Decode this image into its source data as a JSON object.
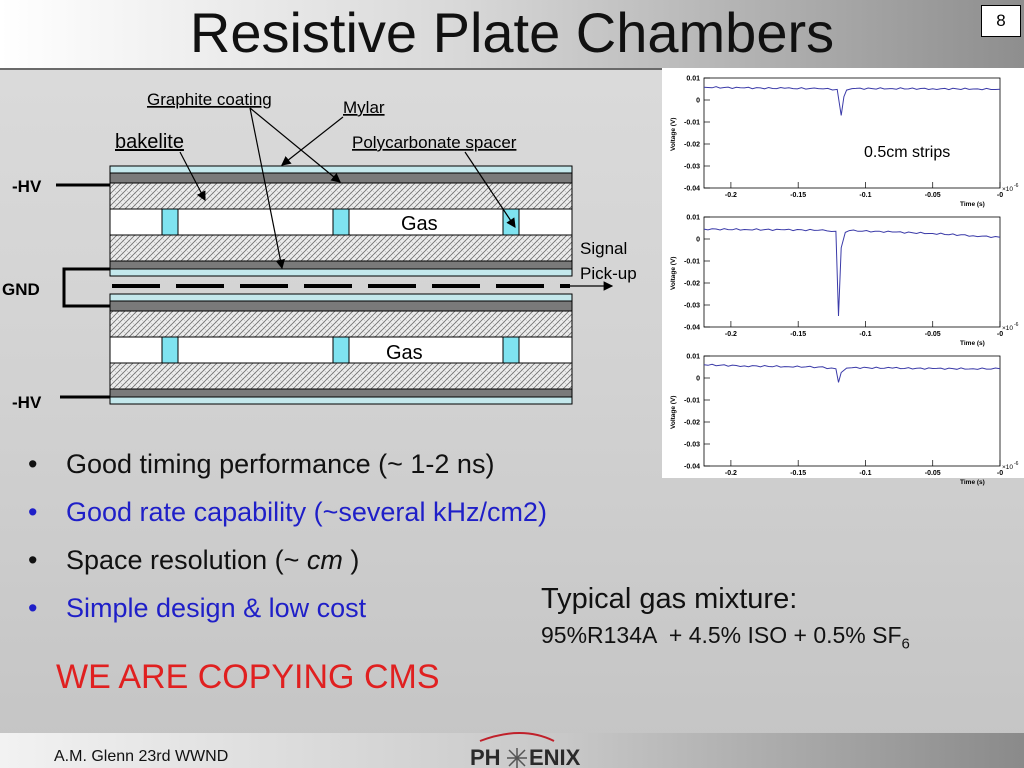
{
  "slide": {
    "title": "Resistive Plate Chambers",
    "number": "8"
  },
  "diagram": {
    "labels": {
      "graphite": "Graphite coating",
      "mylar": "Mylar",
      "bakelite": "bakelite",
      "spacer": "Polycarbonate spacer",
      "hv_top": "-HV",
      "gnd": "GND",
      "hv_bottom": "-HV",
      "gas_top": "Gas",
      "gas_bottom": "Gas",
      "signal_line1": "Signal",
      "signal_line2": "Pick-up"
    }
  },
  "plots": {
    "strips_label": "0.5cm strips",
    "ylabel": "Voltage (V)",
    "xlabel": "Time (s)",
    "x_exponent": "×10",
    "x_exponent_power": "-6",
    "x_tick_labels": [
      "-0.2",
      "-0.15",
      "-0.1",
      "-0.05",
      "-0"
    ],
    "y_tick_labels": [
      "0.01",
      "0",
      "-0.01",
      "-0.02",
      "-0.03",
      "-0.04"
    ],
    "trace_color": "#3a3aa8"
  },
  "chart_data": [
    {
      "type": "line",
      "xlabel": "Time (s)",
      "ylabel": "Voltage (V)",
      "xlim": [
        -0.22,
        0.0
      ],
      "ylim": [
        -0.04,
        0.01
      ],
      "series": [
        {
          "x": [
            -0.22,
            -0.19,
            -0.16,
            -0.135,
            -0.121,
            -0.118,
            -0.116,
            -0.114,
            -0.11,
            -0.08,
            -0.05,
            -0.02,
            0.0
          ],
          "values": [
            0.0058,
            0.0055,
            0.0053,
            0.0052,
            0.0048,
            -0.007,
            0.0015,
            0.0045,
            0.0052,
            0.0052,
            0.0051,
            0.005,
            0.0049
          ]
        }
      ]
    },
    {
      "type": "line",
      "xlabel": "Time (s)",
      "ylabel": "Voltage (V)",
      "xlim": [
        -0.22,
        0.0
      ],
      "ylim": [
        -0.04,
        0.01
      ],
      "series": [
        {
          "x": [
            -0.22,
            -0.19,
            -0.16,
            -0.135,
            -0.122,
            -0.12,
            -0.118,
            -0.115,
            -0.112,
            -0.08,
            -0.05,
            -0.02,
            0.0
          ],
          "values": [
            0.0045,
            0.0043,
            0.0042,
            0.004,
            0.0035,
            -0.035,
            -0.004,
            0.003,
            0.0038,
            0.0032,
            0.0025,
            0.0015,
            0.0008
          ]
        }
      ]
    },
    {
      "type": "line",
      "xlabel": "Time (s)",
      "ylabel": "Voltage (V)",
      "xlim": [
        -0.22,
        0.0
      ],
      "ylim": [
        -0.04,
        0.01
      ],
      "series": [
        {
          "x": [
            -0.22,
            -0.19,
            -0.16,
            -0.135,
            -0.122,
            -0.12,
            -0.118,
            -0.114,
            -0.11,
            -0.08,
            -0.05,
            -0.02,
            0.0
          ],
          "values": [
            0.006,
            0.0055,
            0.0052,
            0.005,
            0.0042,
            -0.002,
            0.0025,
            0.0045,
            0.0047,
            0.0045,
            0.0043,
            0.0042,
            0.0042
          ]
        }
      ]
    }
  ],
  "bullets": [
    {
      "text": "Good timing performance (~ 1-2 ns)"
    },
    {
      "text": "Good rate capability (~several kHz/cm2)"
    },
    {
      "pre": "Space resolution (~ ",
      "em": "cm",
      "post": " )"
    },
    {
      "text": "Simple design & low cost"
    }
  ],
  "bullet_symbol": "•",
  "gas": {
    "title": "Typical gas mixture:",
    "mix": "95%R134A  + 4.5% ISO + 0.5% SF",
    "mix_sub": "6"
  },
  "copying": "WE ARE COPYING CMS",
  "footer": {
    "author": "A.M. Glenn 23rd WWND",
    "logo_left": "PH",
    "logo_right": "ENIX"
  }
}
